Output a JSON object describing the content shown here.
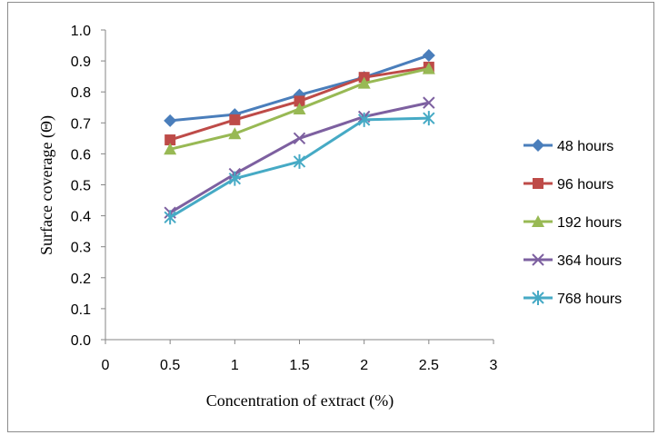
{
  "chart_data": {
    "type": "line",
    "title": "",
    "xlabel": "Concentration of  extract (%)",
    "ylabel": "Surface coverage (Θ)",
    "xlim": [
      0,
      3
    ],
    "ylim": [
      0,
      1.0
    ],
    "x_ticks": [
      "0",
      "0.5",
      "1",
      "1.5",
      "2",
      "2.5",
      "3"
    ],
    "y_ticks": [
      "0.0",
      "0.1",
      "0.2",
      "0.3",
      "0.4",
      "0.5",
      "0.6",
      "0.7",
      "0.8",
      "0.9",
      "1.0"
    ],
    "x": [
      0.5,
      1,
      1.5,
      2,
      2.5
    ],
    "grid": false,
    "legend_position": "right",
    "series": [
      {
        "name": "48 hours",
        "values": [
          0.707,
          0.727,
          0.79,
          0.847,
          0.918
        ],
        "color": "#4a7ebb",
        "marker": "diamond"
      },
      {
        "name": "96 hours",
        "values": [
          0.645,
          0.71,
          0.77,
          0.847,
          0.88
        ],
        "color": "#be4b48",
        "marker": "square"
      },
      {
        "name": "192 hours",
        "values": [
          0.615,
          0.665,
          0.745,
          0.828,
          0.875
        ],
        "color": "#98b954",
        "marker": "triangle"
      },
      {
        "name": "364 hours",
        "values": [
          0.41,
          0.535,
          0.65,
          0.72,
          0.765
        ],
        "color": "#7d60a0",
        "marker": "x"
      },
      {
        "name": "768 hours",
        "values": [
          0.395,
          0.52,
          0.575,
          0.71,
          0.715
        ],
        "color": "#46aac5",
        "marker": "star"
      }
    ]
  }
}
